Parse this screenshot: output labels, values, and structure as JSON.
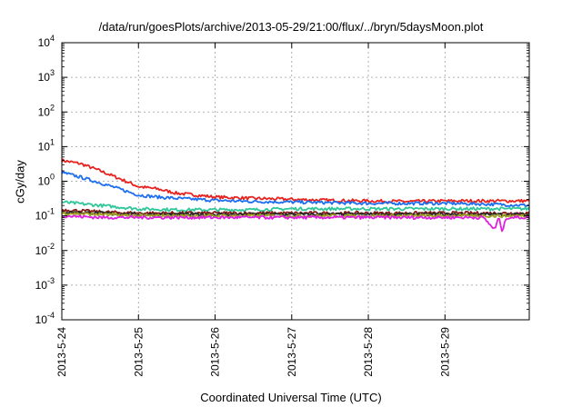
{
  "chart_data": {
    "type": "line",
    "title": "/data/run/goesPlots/archive/2013-05-29/21:00/flux/../bryn/5daysMoon.plot",
    "xlabel": "Coordinated Universal Time (UTC)",
    "ylabel": "cGy/day",
    "y_scale": "log",
    "ylim": [
      0.0001,
      10000
    ],
    "xlim": [
      0,
      6.1
    ],
    "x_tick_labels": [
      "2013-5-24",
      "2013-5-25",
      "2013-5-26",
      "2013-5-27",
      "2013-5-28",
      "2013-5-29"
    ],
    "x_tick_values": [
      0,
      1,
      2,
      3,
      4,
      5
    ],
    "y_tick_mantissa": "10",
    "y_tick_exponents": [
      "-4",
      "-3",
      "-2",
      "-1",
      "0",
      "1",
      "2",
      "3",
      "4"
    ],
    "grid": true,
    "series": [
      {
        "color": "#e8231f",
        "x": [
          0,
          0.25,
          0.5,
          0.75,
          1.0,
          1.25,
          1.5,
          1.75,
          2.0,
          2.5,
          3.0,
          3.5,
          4.0,
          4.5,
          5.0,
          5.5,
          6.1
        ],
        "values": [
          4.0,
          3.2,
          2.0,
          1.2,
          0.7,
          0.6,
          0.45,
          0.4,
          0.35,
          0.32,
          0.3,
          0.28,
          0.27,
          0.26,
          0.27,
          0.27,
          0.27
        ]
      },
      {
        "color": "#1e6ff0",
        "x": [
          0,
          0.25,
          0.5,
          0.75,
          1.0,
          1.25,
          1.5,
          1.75,
          2.0,
          2.5,
          3.0,
          3.5,
          4.0,
          4.5,
          5.0,
          5.5,
          6.1
        ],
        "values": [
          1.8,
          1.3,
          0.9,
          0.6,
          0.4,
          0.35,
          0.32,
          0.3,
          0.28,
          0.26,
          0.25,
          0.24,
          0.23,
          0.23,
          0.23,
          0.22,
          0.2
        ]
      },
      {
        "color": "#2fc79a",
        "x": [
          0,
          0.5,
          1.0,
          1.5,
          2.0,
          2.5,
          3.0,
          3.5,
          4.0,
          4.5,
          5.0,
          5.5,
          6.1
        ],
        "values": [
          0.25,
          0.2,
          0.16,
          0.15,
          0.15,
          0.15,
          0.16,
          0.16,
          0.16,
          0.16,
          0.16,
          0.16,
          0.16
        ]
      },
      {
        "color": "#8b1a1a",
        "x": [
          0,
          0.5,
          1.0,
          1.5,
          2.0,
          2.5,
          3.0,
          3.5,
          4.0,
          4.5,
          5.0,
          5.5,
          6.1
        ],
        "values": [
          0.15,
          0.13,
          0.12,
          0.12,
          0.12,
          0.12,
          0.12,
          0.12,
          0.12,
          0.12,
          0.12,
          0.12,
          0.12
        ]
      },
      {
        "color": "#2a2a2a",
        "x": [
          0,
          0.5,
          1.0,
          1.5,
          2.0,
          2.5,
          3.0,
          3.5,
          4.0,
          4.5,
          5.0,
          5.5,
          6.1
        ],
        "values": [
          0.13,
          0.12,
          0.11,
          0.11,
          0.11,
          0.11,
          0.11,
          0.11,
          0.11,
          0.11,
          0.11,
          0.11,
          0.11
        ]
      },
      {
        "color": "#a0a020",
        "x": [
          0,
          0.5,
          1.0,
          1.5,
          2.0,
          2.5,
          3.0,
          3.5,
          4.0,
          4.5,
          5.0,
          5.5,
          6.1
        ],
        "values": [
          0.12,
          0.11,
          0.1,
          0.1,
          0.1,
          0.1,
          0.1,
          0.1,
          0.1,
          0.1,
          0.1,
          0.1,
          0.1
        ]
      },
      {
        "color": "#e020e0",
        "x": [
          0,
          0.5,
          1.0,
          1.5,
          2.0,
          2.5,
          3.0,
          3.5,
          4.0,
          4.5,
          5.0,
          5.5,
          5.65,
          5.7,
          5.75,
          5.8,
          6.1
        ],
        "values": [
          0.1,
          0.09,
          0.09,
          0.09,
          0.09,
          0.09,
          0.09,
          0.09,
          0.09,
          0.09,
          0.09,
          0.09,
          0.04,
          0.09,
          0.035,
          0.09,
          0.09
        ]
      }
    ]
  }
}
